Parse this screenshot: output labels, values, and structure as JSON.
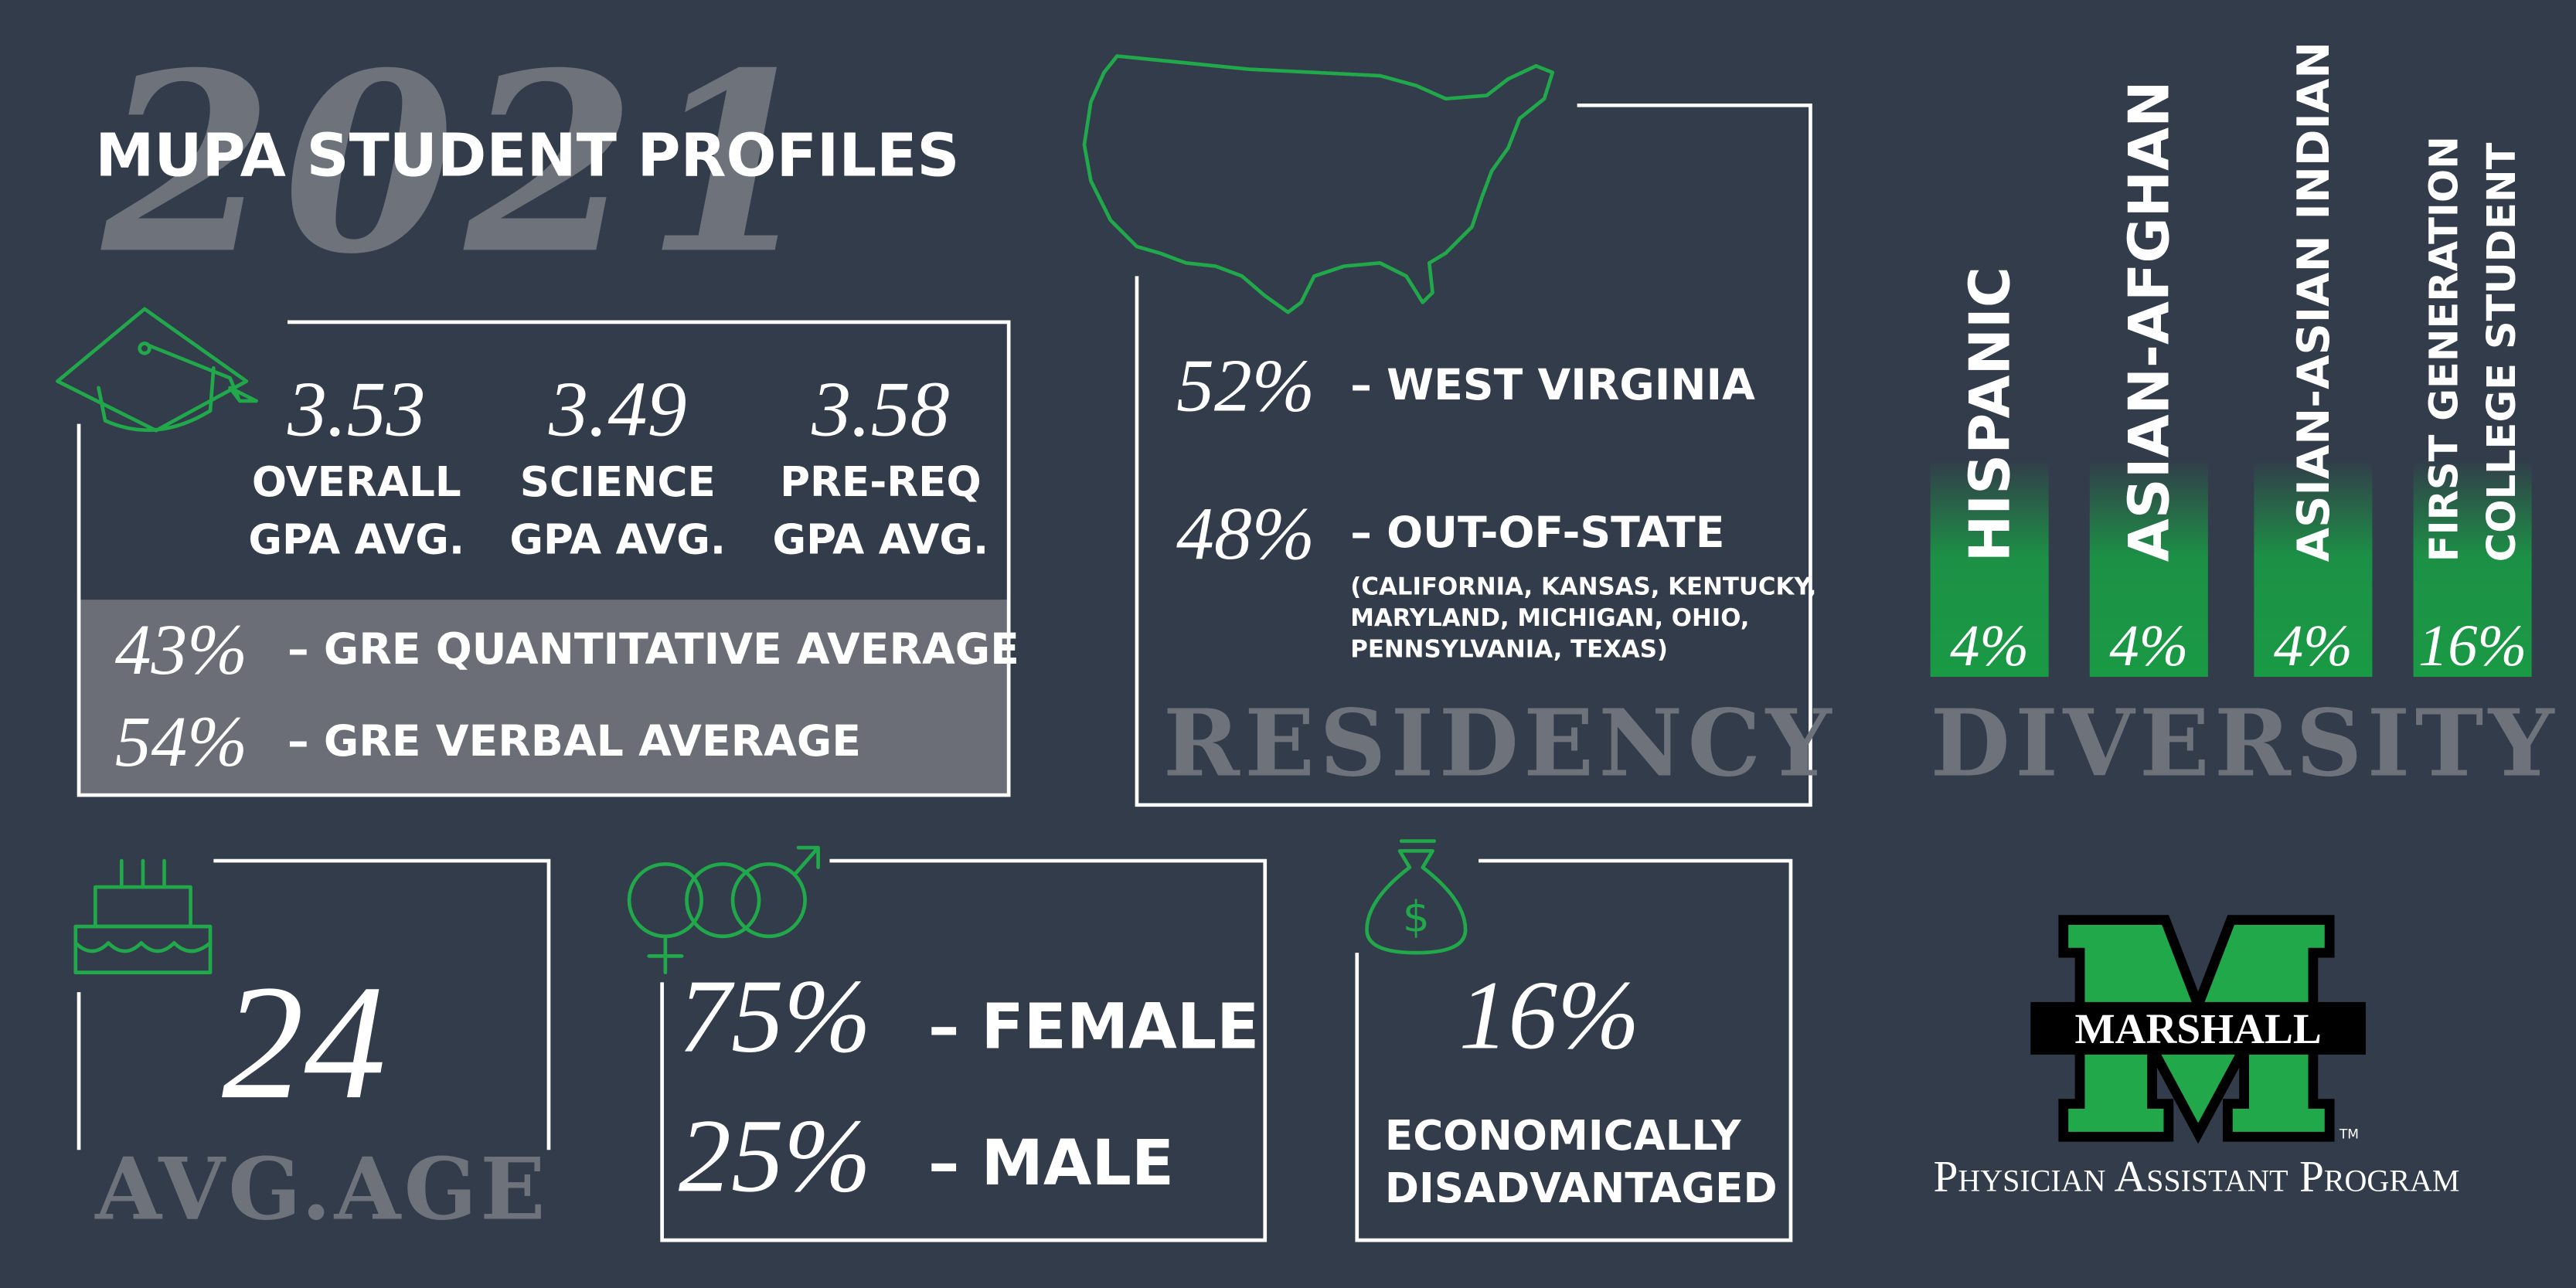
{
  "header": {
    "year": "2021",
    "title": "MUPA STUDENT PROFILES"
  },
  "gpa": {
    "items": [
      {
        "value": "3.53",
        "label_lines": [
          "OVERALL",
          "GPA AVG."
        ]
      },
      {
        "value": "3.49",
        "label_lines": [
          "SCIENCE",
          "GPA AVG."
        ]
      },
      {
        "value": "3.58",
        "label_lines": [
          "PRE-REQ",
          "GPA AVG."
        ]
      }
    ]
  },
  "gre": {
    "items": [
      {
        "percent": "43%",
        "label": "– GRE QUANTITATIVE AVERAGE"
      },
      {
        "percent": "54%",
        "label": "– GRE VERBAL AVERAGE"
      }
    ]
  },
  "residency": {
    "title": "RESIDENCY",
    "items": [
      {
        "percent": "52%",
        "label": "– WEST VIRGINIA"
      },
      {
        "percent": "48%",
        "label": "– OUT-OF-STATE"
      }
    ],
    "states_lines": [
      "(CALIFORNIA, KANSAS, KENTUCKY,",
      "MARYLAND, MICHIGAN, OHIO,",
      "PENNSYLVANIA, TEXAS)"
    ]
  },
  "diversity": {
    "title": "DIVERSITY",
    "items": [
      {
        "label_lines": [
          "HISPANIC"
        ],
        "percent": "4%"
      },
      {
        "label_lines": [
          "ASIAN-AFGHAN"
        ],
        "percent": "4%"
      },
      {
        "label_lines": [
          "ASIAN-ASIAN INDIAN"
        ],
        "percent": "4%"
      },
      {
        "label_lines": [
          "FIRST GENERATION",
          "COLLEGE STUDENT"
        ],
        "percent": "16%"
      }
    ]
  },
  "age": {
    "value": "24",
    "label": "AVG.AGE"
  },
  "gender": {
    "items": [
      {
        "percent": "75%",
        "label": "– FEMALE"
      },
      {
        "percent": "25%",
        "label": "– MALE"
      }
    ]
  },
  "economic": {
    "percent": "16%",
    "label_lines": [
      "ECONOMICALLY",
      "DISADVANTAGED"
    ]
  },
  "logo": {
    "name": "MARSHALL",
    "program": "Physician Assistant Program",
    "trademark": "TM"
  }
}
